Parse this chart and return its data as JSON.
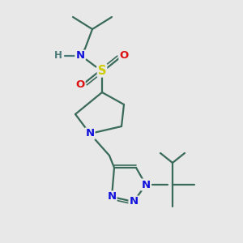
{
  "bg_color": "#e8e8e8",
  "bond_color": "#3a6a5a",
  "atom_colors": {
    "N": "#1111dd",
    "S": "#cccc00",
    "O": "#dd1111",
    "H": "#4a7a7a",
    "C": "#3a6a5a"
  },
  "figsize": [
    3.0,
    3.0
  ],
  "dpi": 100,
  "lw": 1.6,
  "fs": 9.5
}
